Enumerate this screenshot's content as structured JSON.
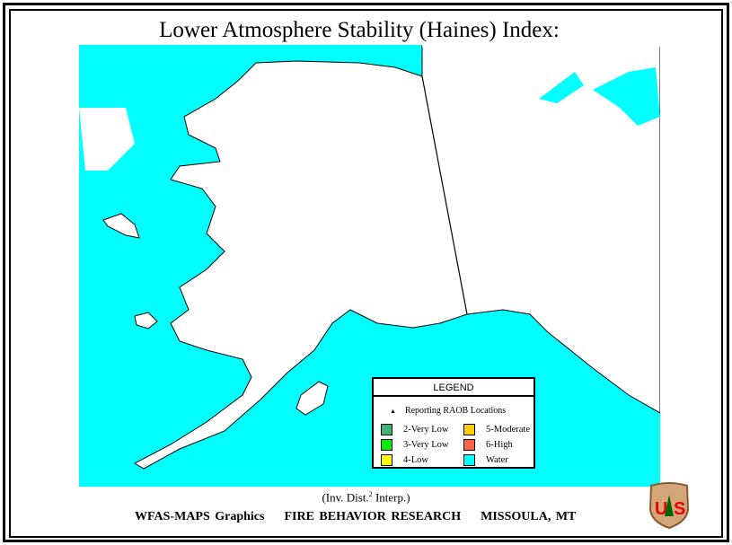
{
  "title": "Lower Atmosphere Stability (Haines) Index:",
  "colors": {
    "water": "#00ffff",
    "land": "#ffffff"
  },
  "legend": {
    "heading": "LEGEND",
    "raob": "Reporting RAOB Locations",
    "items": [
      {
        "label": "2-Very Low",
        "color": "#3cb371"
      },
      {
        "label": "3-Very Low",
        "color": "#00ee00"
      },
      {
        "label": "4-Low",
        "color": "#ffff00"
      },
      {
        "label": "5-Moderate",
        "color": "#ffcc00"
      },
      {
        "label": "6-High",
        "color": "#ff6347"
      },
      {
        "label": "Water",
        "color": "#00ffff"
      }
    ]
  },
  "interp": {
    "prefix": "(Inv.  Dist.",
    "sup": "2",
    "suffix": " Interp.)"
  },
  "footer": {
    "credits": "WFAS-MAPS Graphics    FIRE BEHAVIOR RESEARCH    MISSOULA, MT",
    "logo_text": "US"
  }
}
